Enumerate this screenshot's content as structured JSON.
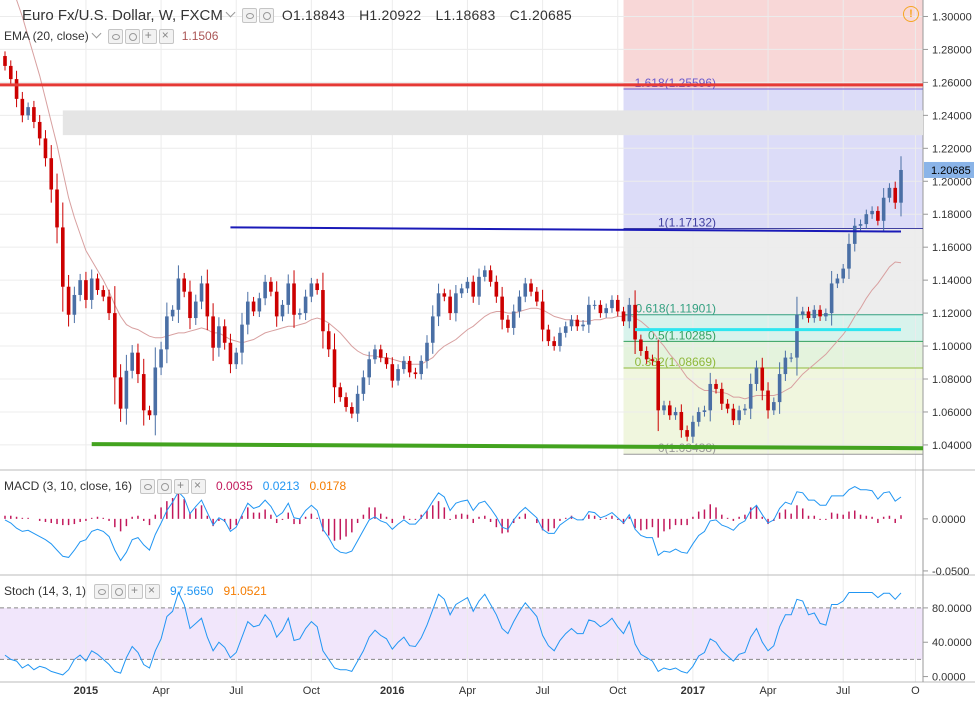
{
  "header": {
    "symbol": "Euro Fx/U.S. Dollar, W, FXCM",
    "ohlc": {
      "o": "O1.18843",
      "h": "H1.20922",
      "l": "L1.18683",
      "c": "C1.20685"
    },
    "ema_label": "EMA (20, close)",
    "ema_value": "1.1506"
  },
  "macd": {
    "label": "MACD (3, 10, close, 16)",
    "v1": "0.0035",
    "v2": "0.0213",
    "v3": "0.0178"
  },
  "stoch": {
    "label": "Stoch (14, 3, 1)",
    "v1": "97.5650",
    "v2": "91.0521"
  },
  "colors": {
    "bull": "#4a6fa5",
    "bear": "#cc0000",
    "macd_line": "#2196f3",
    "macd_hist": "#c2185b",
    "stoch_line": "#2196f3",
    "red_level": "#e53935",
    "green_level": "#43a31f",
    "blue_line": "#1a1ab8",
    "cyan_line": "#2ee6f0"
  },
  "chart_data": {
    "type": "candlestick",
    "symbol": "Euro Fx/U.S. Dollar",
    "timeframe": "W",
    "x_ticks": [
      "2015",
      "Apr",
      "Jul",
      "Oct",
      "2016",
      "Apr",
      "Jul",
      "Oct",
      "2017",
      "Apr",
      "Jul",
      "O"
    ],
    "y_ticks": [
      "1.30000",
      "1.28000",
      "1.26000",
      "1.24000",
      "1.22000",
      "1.20000",
      "1.18000",
      "1.16000",
      "1.14000",
      "1.12000",
      "1.10000",
      "1.08000",
      "1.06000",
      "1.04000"
    ],
    "last_price_label": "1.20685",
    "ylim": [
      1.026,
      1.31
    ],
    "candles_close": [
      1.27,
      1.262,
      1.25,
      1.24,
      1.245,
      1.236,
      1.226,
      1.214,
      1.195,
      1.172,
      1.136,
      1.119,
      1.131,
      1.14,
      1.128,
      1.141,
      1.134,
      1.13,
      1.12,
      1.081,
      1.062,
      1.085,
      1.096,
      1.083,
      1.061,
      1.058,
      1.087,
      1.098,
      1.118,
      1.122,
      1.141,
      1.133,
      1.117,
      1.127,
      1.138,
      1.118,
      1.099,
      1.112,
      1.102,
      1.089,
      1.096,
      1.113,
      1.127,
      1.121,
      1.129,
      1.139,
      1.133,
      1.118,
      1.125,
      1.138,
      1.119,
      1.12,
      1.13,
      1.138,
      1.134,
      1.109,
      1.098,
      1.075,
      1.069,
      1.063,
      1.059,
      1.071,
      1.081,
      1.092,
      1.098,
      1.093,
      1.089,
      1.079,
      1.086,
      1.091,
      1.084,
      1.083,
      1.091,
      1.102,
      1.118,
      1.132,
      1.13,
      1.12,
      1.132,
      1.135,
      1.139,
      1.13,
      1.142,
      1.146,
      1.139,
      1.13,
      1.116,
      1.111,
      1.121,
      1.13,
      1.138,
      1.133,
      1.127,
      1.11,
      1.103,
      1.1,
      1.108,
      1.112,
      1.116,
      1.112,
      1.113,
      1.125,
      1.125,
      1.12,
      1.123,
      1.128,
      1.121,
      1.115,
      1.125,
      1.104,
      1.097,
      1.092,
      1.091,
      1.061,
      1.064,
      1.058,
      1.06,
      1.049,
      1.045,
      1.054,
      1.06,
      1.061,
      1.077,
      1.074,
      1.065,
      1.062,
      1.055,
      1.061,
      1.062,
      1.077,
      1.087,
      1.073,
      1.061,
      1.066,
      1.083,
      1.093,
      1.093,
      1.119,
      1.121,
      1.117,
      1.122,
      1.118,
      1.12,
      1.138,
      1.141,
      1.147,
      1.162,
      1.173,
      1.174,
      1.18,
      1.182,
      1.176,
      1.19,
      1.196,
      1.187,
      1.20685
    ],
    "annotations": {
      "fib_levels": [
        {
          "label": "1.618(1.25596)",
          "value": 1.25596
        },
        {
          "label": "1(1.17132)",
          "value": 1.17132
        },
        {
          "label": "0.618(1.11901)",
          "value": 1.11901
        },
        {
          "label": "0.5(1.10285)",
          "value": 1.10285
        },
        {
          "label": "0.382(1.08669)",
          "value": 1.08669
        },
        {
          "label": "0(1.03438)",
          "value": 1.03438
        }
      ],
      "red_line": 1.2585,
      "cyan_line": 1.11,
      "blue_line_start": 1.172,
      "blue_line_end": 1.1695,
      "green_line_start": 1.0405,
      "green_line_end": 1.038,
      "grey_zone": [
        1.228,
        1.243
      ]
    },
    "ema_20": [
      1.33,
      1.32,
      1.31,
      1.3,
      1.288,
      1.276,
      1.264,
      1.25,
      1.236,
      1.222,
      1.206,
      1.19,
      1.178,
      1.168,
      1.158,
      1.152,
      1.146,
      1.14,
      1.133,
      1.125,
      1.118,
      1.113,
      1.111,
      1.11,
      1.108,
      1.106,
      1.105,
      1.105,
      1.106,
      1.107,
      1.108,
      1.108,
      1.109,
      1.11,
      1.111,
      1.11,
      1.108,
      1.108,
      1.106,
      1.104,
      1.103,
      1.102,
      1.103,
      1.104,
      1.106,
      1.108,
      1.109,
      1.11,
      1.111,
      1.112,
      1.112,
      1.113,
      1.114,
      1.116,
      1.117,
      1.116,
      1.114,
      1.111,
      1.108,
      1.104,
      1.1,
      1.097,
      1.095,
      1.094,
      1.094,
      1.093,
      1.093,
      1.092,
      1.091,
      1.09,
      1.089,
      1.089,
      1.089,
      1.091,
      1.093,
      1.097,
      1.1,
      1.102,
      1.104,
      1.107,
      1.11,
      1.112,
      1.115,
      1.118,
      1.12,
      1.121,
      1.121,
      1.12,
      1.12,
      1.121,
      1.122,
      1.123,
      1.123,
      1.122,
      1.12,
      1.118,
      1.117,
      1.116,
      1.116,
      1.115,
      1.115,
      1.115,
      1.116,
      1.116,
      1.117,
      1.117,
      1.118,
      1.118,
      1.119,
      1.117,
      1.115,
      1.112,
      1.109,
      1.104,
      1.1,
      1.095,
      1.091,
      1.086,
      1.081,
      1.078,
      1.075,
      1.073,
      1.073,
      1.072,
      1.072,
      1.071,
      1.069,
      1.069,
      1.068,
      1.069,
      1.07,
      1.07,
      1.07,
      1.07,
      1.071,
      1.073,
      1.075,
      1.079,
      1.083,
      1.086,
      1.089,
      1.092,
      1.095,
      1.099,
      1.103,
      1.107,
      1.112,
      1.118,
      1.123,
      1.129,
      1.134,
      1.138,
      1.143,
      1.148,
      1.151,
      1.1506
    ],
    "macd": {
      "ylim": [
        -0.052,
        0.045
      ],
      "y_ticks": [
        "0.0000",
        "-0.0500"
      ],
      "line": [
        -0.001,
        -0.004,
        -0.009,
        -0.012,
        -0.011,
        -0.014,
        -0.017,
        -0.02,
        -0.024,
        -0.03,
        -0.036,
        -0.037,
        -0.03,
        -0.022,
        -0.02,
        -0.012,
        -0.01,
        -0.012,
        -0.017,
        -0.03,
        -0.04,
        -0.032,
        -0.02,
        -0.018,
        -0.025,
        -0.03,
        -0.015,
        -0.004,
        0.008,
        0.016,
        0.026,
        0.02,
        0.005,
        0.012,
        0.018,
        0.006,
        -0.006,
        0.001,
        -0.002,
        -0.012,
        -0.008,
        0.004,
        0.015,
        0.01,
        0.012,
        0.018,
        0.012,
        0.002,
        0.006,
        0.015,
        0.001,
        0.0,
        0.008,
        0.013,
        0.008,
        -0.01,
        -0.018,
        -0.028,
        -0.032,
        -0.033,
        -0.031,
        -0.021,
        -0.011,
        -0.001,
        0.002,
        -0.002,
        -0.004,
        -0.01,
        -0.005,
        -0.001,
        -0.005,
        -0.005,
        0.001,
        0.008,
        0.017,
        0.025,
        0.021,
        0.008,
        0.015,
        0.017,
        0.018,
        0.008,
        0.015,
        0.017,
        0.01,
        0.002,
        -0.008,
        -0.01,
        -0.001,
        0.006,
        0.011,
        0.006,
        0.001,
        -0.01,
        -0.014,
        -0.014,
        -0.006,
        -0.002,
        0.002,
        -0.001,
        -0.001,
        0.007,
        0.006,
        0.001,
        0.003,
        0.006,
        0.001,
        -0.004,
        0.004,
        -0.01,
        -0.016,
        -0.018,
        -0.018,
        -0.035,
        -0.031,
        -0.032,
        -0.029,
        -0.032,
        -0.033,
        -0.024,
        -0.016,
        -0.012,
        -0.002,
        -0.001,
        -0.006,
        -0.008,
        -0.011,
        -0.005,
        -0.002,
        0.008,
        0.013,
        0.004,
        -0.004,
        -0.001,
        0.01,
        0.016,
        0.014,
        0.026,
        0.025,
        0.018,
        0.018,
        0.013,
        0.013,
        0.022,
        0.022,
        0.022,
        0.028,
        0.031,
        0.028,
        0.028,
        0.027,
        0.019,
        0.025,
        0.026,
        0.017,
        0.021
      ],
      "hist": [
        0.003,
        0.003,
        0.002,
        0.001,
        0.001,
        0.0,
        -0.002,
        -0.003,
        -0.004,
        -0.005,
        -0.006,
        -0.006,
        -0.005,
        -0.003,
        -0.002,
        0.001,
        0.002,
        0.001,
        -0.002,
        -0.008,
        -0.012,
        -0.007,
        0.002,
        0.003,
        -0.002,
        -0.006,
        0.004,
        0.011,
        0.017,
        0.02,
        0.025,
        0.019,
        0.006,
        0.01,
        0.013,
        0.003,
        -0.007,
        -0.002,
        -0.003,
        -0.01,
        -0.006,
        0.003,
        0.011,
        0.006,
        0.006,
        0.009,
        0.004,
        -0.004,
        -0.001,
        0.006,
        -0.005,
        -0.005,
        0.002,
        0.005,
        0.001,
        -0.012,
        -0.016,
        -0.021,
        -0.02,
        -0.017,
        -0.013,
        -0.004,
        0.004,
        0.011,
        0.011,
        0.005,
        0.002,
        -0.004,
        0.0,
        0.003,
        -0.001,
        -0.001,
        0.004,
        0.008,
        0.013,
        0.017,
        0.011,
        -0.001,
        0.004,
        0.005,
        0.004,
        -0.004,
        0.002,
        0.003,
        -0.003,
        -0.008,
        -0.014,
        -0.013,
        -0.004,
        0.002,
        0.005,
        0.0,
        -0.004,
        -0.011,
        -0.012,
        -0.009,
        -0.002,
        0.001,
        0.003,
        0.0,
        -0.001,
        0.004,
        0.003,
        -0.001,
        0.001,
        0.003,
        -0.001,
        -0.005,
        0.002,
        -0.009,
        -0.011,
        -0.01,
        -0.008,
        -0.018,
        -0.012,
        -0.01,
        -0.006,
        -0.006,
        -0.006,
        0.002,
        0.007,
        0.009,
        0.014,
        0.011,
        0.004,
        0.001,
        -0.002,
        0.002,
        0.004,
        0.011,
        0.012,
        0.002,
        -0.005,
        -0.002,
        0.006,
        0.009,
        0.005,
        0.013,
        0.01,
        0.003,
        0.003,
        -0.001,
        -0.001,
        0.006,
        0.005,
        0.004,
        0.007,
        0.008,
        0.004,
        0.003,
        0.002,
        -0.004,
        0.002,
        0.003,
        -0.004,
        0.0035
      ]
    },
    "stoch": {
      "ylim": [
        -4,
        116
      ],
      "y_ticks": [
        "80.0000",
        "40.0000",
        "0.0000"
      ],
      "levels": [
        80,
        20
      ],
      "k": [
        25,
        20,
        18,
        10,
        14,
        8,
        12,
        10,
        6,
        4,
        2,
        8,
        20,
        25,
        18,
        30,
        26,
        20,
        14,
        6,
        4,
        22,
        35,
        28,
        14,
        10,
        30,
        44,
        70,
        76,
        98,
        84,
        56,
        62,
        68,
        46,
        30,
        40,
        34,
        22,
        28,
        46,
        64,
        58,
        60,
        72,
        64,
        46,
        54,
        68,
        42,
        44,
        56,
        64,
        58,
        30,
        20,
        10,
        8,
        8,
        6,
        18,
        30,
        46,
        54,
        48,
        44,
        32,
        40,
        46,
        36,
        35,
        45,
        60,
        78,
        96,
        90,
        72,
        84,
        88,
        92,
        76,
        88,
        96,
        84,
        72,
        56,
        50,
        64,
        76,
        86,
        78,
        70,
        48,
        36,
        30,
        42,
        50,
        56,
        50,
        50,
        66,
        64,
        58,
        62,
        68,
        58,
        50,
        64,
        38,
        26,
        22,
        18,
        6,
        10,
        8,
        10,
        6,
        4,
        12,
        24,
        28,
        44,
        40,
        30,
        24,
        18,
        26,
        28,
        46,
        56,
        40,
        30,
        36,
        58,
        72,
        72,
        90,
        88,
        72,
        74,
        62,
        60,
        84,
        84,
        88,
        98,
        98,
        98,
        98,
        98,
        92,
        97,
        97,
        90,
        97.5
      ]
    }
  }
}
